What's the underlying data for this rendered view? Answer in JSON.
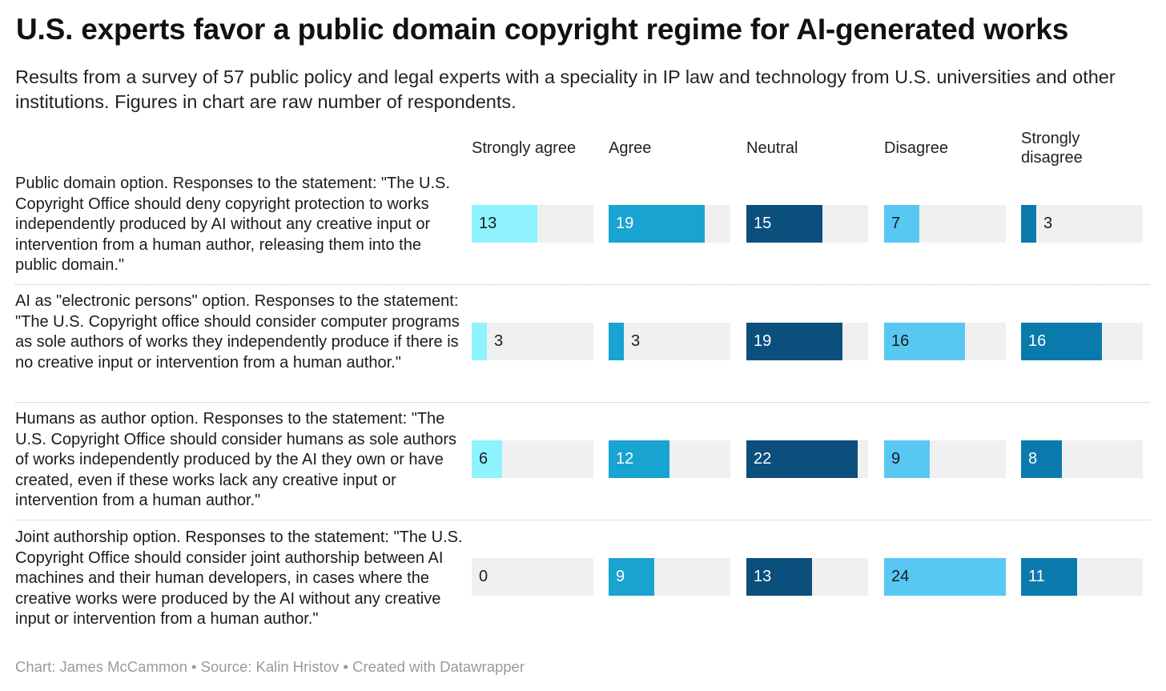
{
  "title": "U.S. experts favor a public domain copyright regime for AI-generated works",
  "subtitle": "Results from a survey of 57 public policy and legal experts with a speciality in IP law and technology from U.S. universities and other institutions. Figures in chart are raw number of respondents.",
  "footer": "Chart: James McCammon • Source: Kalin Hristov • Created with Datawrapper",
  "chart_data": {
    "type": "bar",
    "orientation": "horizontal, small multiples per response column",
    "columns": [
      "Strongly agree",
      "Agree",
      "Neutral",
      "Disagree",
      "Strongly disagree"
    ],
    "colors": [
      "#8ef3ff",
      "#19a3d0",
      "#0b4f7d",
      "#58c8f3",
      "#0a7aad"
    ],
    "scale_max": 24,
    "rows": [
      {
        "label": "Public domain option. Responses to the statement: \"The U.S. Copyright Office should deny copyright protection to works independently produced by AI without any creative input or intervention from a human author, releasing them into the public domain.\"",
        "values": [
          13,
          19,
          15,
          7,
          3
        ]
      },
      {
        "label": "AI as \"electronic persons\" option. Responses to the statement: \"The U.S. Copyright office should consider computer programs as sole authors of works they independently produce if there is no creative input or intervention from a human author.\"",
        "values": [
          3,
          3,
          19,
          16,
          16
        ]
      },
      {
        "label": "Humans as author option. Responses to the statement: \"The U.S. Copyright Office should consider humans as sole authors of works independently produced by the AI they own or have created, even if these works lack any creative input or intervention from a human author.\"",
        "values": [
          6,
          12,
          22,
          9,
          8
        ]
      },
      {
        "label": "Joint authorship option. Responses to the statement: \"The U.S. Copyright Office should consider joint authorship between AI machines and their human developers, in cases where the creative works were produced by the AI without any creative input or intervention from a human author.\"",
        "values": [
          0,
          9,
          13,
          24,
          11
        ]
      }
    ]
  }
}
